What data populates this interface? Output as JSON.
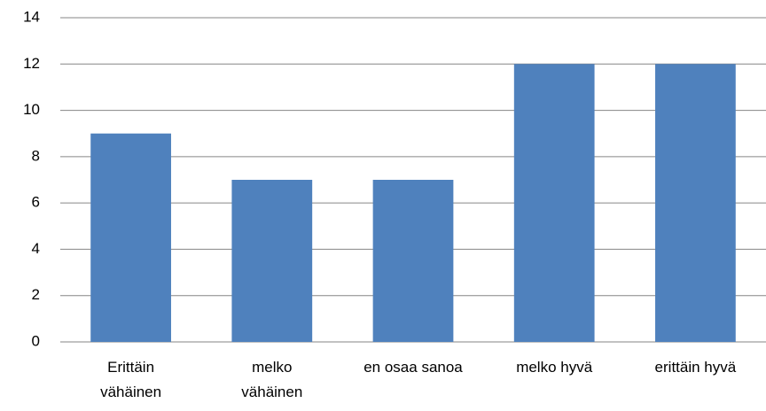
{
  "chart_data": {
    "type": "bar",
    "categories": [
      "Erittäin\nvähäinen",
      "melko\nvähäinen",
      "en osaa sanoa",
      "melko hyvä",
      "erittäin hyvä"
    ],
    "values": [
      9,
      7,
      7,
      12,
      12
    ],
    "color": "#4f81bd",
    "ylim": [
      0,
      14
    ],
    "yticks": [
      0,
      2,
      4,
      6,
      8,
      10,
      12,
      14
    ],
    "grid": true
  }
}
